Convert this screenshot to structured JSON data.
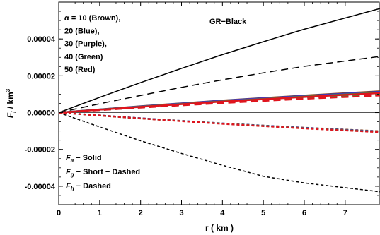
{
  "chart_data": {
    "type": "line",
    "xlabel": "r ( km )",
    "ylabel_main": "F",
    "ylabel_sub": "i",
    "ylabel_unit": " / km",
    "ylabel_sup": "3",
    "xlim": [
      0,
      7.85
    ],
    "ylim": [
      -5e-05,
      6e-05
    ],
    "x_ticks": [
      0,
      1,
      2,
      3,
      4,
      5,
      6,
      7
    ],
    "y_ticks": [
      -4e-05,
      -2e-05,
      0,
      2e-05,
      4e-05
    ],
    "y_tick_labels": [
      "-0.00004",
      "-0.00002",
      "0.00000",
      "0.00002",
      "0.00004"
    ],
    "grid": false,
    "alpha_legend": {
      "symbol": "α",
      "lines": [
        "= 10 (Brown),",
        "20 (Blue),",
        "30 (Purple),",
        "40 (Green)",
        "50 (Red)"
      ]
    },
    "gr_label": "GR−Black",
    "style_legend": [
      {
        "sym": "F",
        "sub": "a",
        "text": " − Solid"
      },
      {
        "sym": "F",
        "sub": "g",
        "text": " − Short − Dashed"
      },
      {
        "sym": "F",
        "sub": "h",
        "text": " − Dashed"
      }
    ],
    "series": [
      {
        "color": "#000000",
        "dash": "",
        "x": [
          0,
          1,
          2,
          3,
          4,
          5,
          6,
          7.85
        ],
        "y": [
          0,
          8.3e-06,
          1.63e-05,
          2.4e-05,
          3.15e-05,
          3.85e-05,
          4.53e-05,
          5.65e-05
        ]
      },
      {
        "color": "#000000",
        "dash": "10,6",
        "x": [
          0,
          1,
          2,
          3,
          4,
          5,
          6,
          7.85
        ],
        "y": [
          0,
          4.8e-06,
          9.3e-06,
          1.37e-05,
          1.78e-05,
          2.16e-05,
          2.51e-05,
          3.05e-05
        ]
      },
      {
        "color": "#000000",
        "dash": "4,3",
        "x": [
          0,
          1,
          2,
          3,
          4,
          5,
          6,
          7.85
        ],
        "y": [
          0,
          -7.8e-06,
          -1.53e-05,
          -2.22e-05,
          -2.86e-05,
          -3.46e-05,
          -3.82e-05,
          -4.3e-05
        ]
      },
      {
        "color": "#8B4513",
        "dash": "",
        "x": [
          0,
          2,
          4,
          6,
          7.85
        ],
        "y": [
          0,
          3.5e-06,
          6.6e-06,
          9.3e-06,
          1.16e-05
        ]
      },
      {
        "color": "#8B4513",
        "dash": "10,6",
        "x": [
          0,
          2,
          4,
          6,
          7.85
        ],
        "y": [
          0,
          3.1e-06,
          5.9e-06,
          8.3e-06,
          1.03e-05
        ]
      },
      {
        "color": "#8B4513",
        "dash": "4,3",
        "x": [
          0,
          2,
          4,
          6,
          7.85
        ],
        "y": [
          0,
          -3.1e-06,
          -5.9e-06,
          -8.2e-06,
          -1.01e-05
        ]
      },
      {
        "color": "#1f3fd0",
        "dash": "",
        "x": [
          0,
          2,
          4,
          6,
          7.85
        ],
        "y": [
          0,
          3.4e-06,
          6.5e-06,
          9.1e-06,
          1.13e-05
        ]
      },
      {
        "color": "#1f3fd0",
        "dash": "10,6",
        "x": [
          0,
          2,
          4,
          6,
          7.85
        ],
        "y": [
          0,
          3e-06,
          5.7e-06,
          8.1e-06,
          1.01e-05
        ]
      },
      {
        "color": "#1f3fd0",
        "dash": "4,3",
        "x": [
          0,
          2,
          4,
          6,
          7.85
        ],
        "y": [
          0,
          -3.1e-06,
          -5.9e-06,
          -8.3e-06,
          -1.03e-05
        ]
      },
      {
        "color": "#7a2aa8",
        "dash": "",
        "x": [
          0,
          2,
          4,
          6,
          7.85
        ],
        "y": [
          0,
          3.3e-06,
          6.3e-06,
          8.9e-06,
          1.1e-05
        ]
      },
      {
        "color": "#7a2aa8",
        "dash": "10,6",
        "x": [
          0,
          2,
          4,
          6,
          7.85
        ],
        "y": [
          0,
          2.9e-06,
          5.6e-06,
          8e-06,
          9.9e-06
        ]
      },
      {
        "color": "#7a2aa8",
        "dash": "4,3",
        "x": [
          0,
          2,
          4,
          6,
          7.85
        ],
        "y": [
          0,
          -3.1e-06,
          -6e-06,
          -8.4e-06,
          -1.04e-05
        ]
      },
      {
        "color": "#2e9e2e",
        "dash": "",
        "x": [
          0,
          2,
          4,
          6,
          7.85
        ],
        "y": [
          0,
          3.2e-06,
          6.1e-06,
          8.7e-06,
          1.08e-05
        ]
      },
      {
        "color": "#2e9e2e",
        "dash": "10,6",
        "x": [
          0,
          2,
          4,
          6,
          7.85
        ],
        "y": [
          0,
          2.8e-06,
          5.4e-06,
          7.8e-06,
          9.6e-06
        ]
      },
      {
        "color": "#2e9e2e",
        "dash": "4,3",
        "x": [
          0,
          2,
          4,
          6,
          7.85
        ],
        "y": [
          0,
          -3.2e-06,
          -6e-06,
          -8.5e-06,
          -1.05e-05
        ]
      },
      {
        "color": "#e0141e",
        "dash": "",
        "x": [
          0,
          2,
          4,
          6,
          7.85
        ],
        "y": [
          0,
          3.1e-06,
          6e-06,
          8.5e-06,
          1.06e-05
        ]
      },
      {
        "color": "#e0141e",
        "dash": "10,6",
        "x": [
          0,
          2,
          4,
          6,
          7.85
        ],
        "y": [
          0,
          2.7e-06,
          5.2e-06,
          7.5e-06,
          9.3e-06
        ]
      },
      {
        "color": "#e0141e",
        "dash": "4,3",
        "x": [
          0,
          2,
          4,
          6,
          7.85
        ],
        "y": [
          0,
          -3.2e-06,
          -6.1e-06,
          -8.6e-06,
          -1.06e-05
        ]
      }
    ]
  }
}
